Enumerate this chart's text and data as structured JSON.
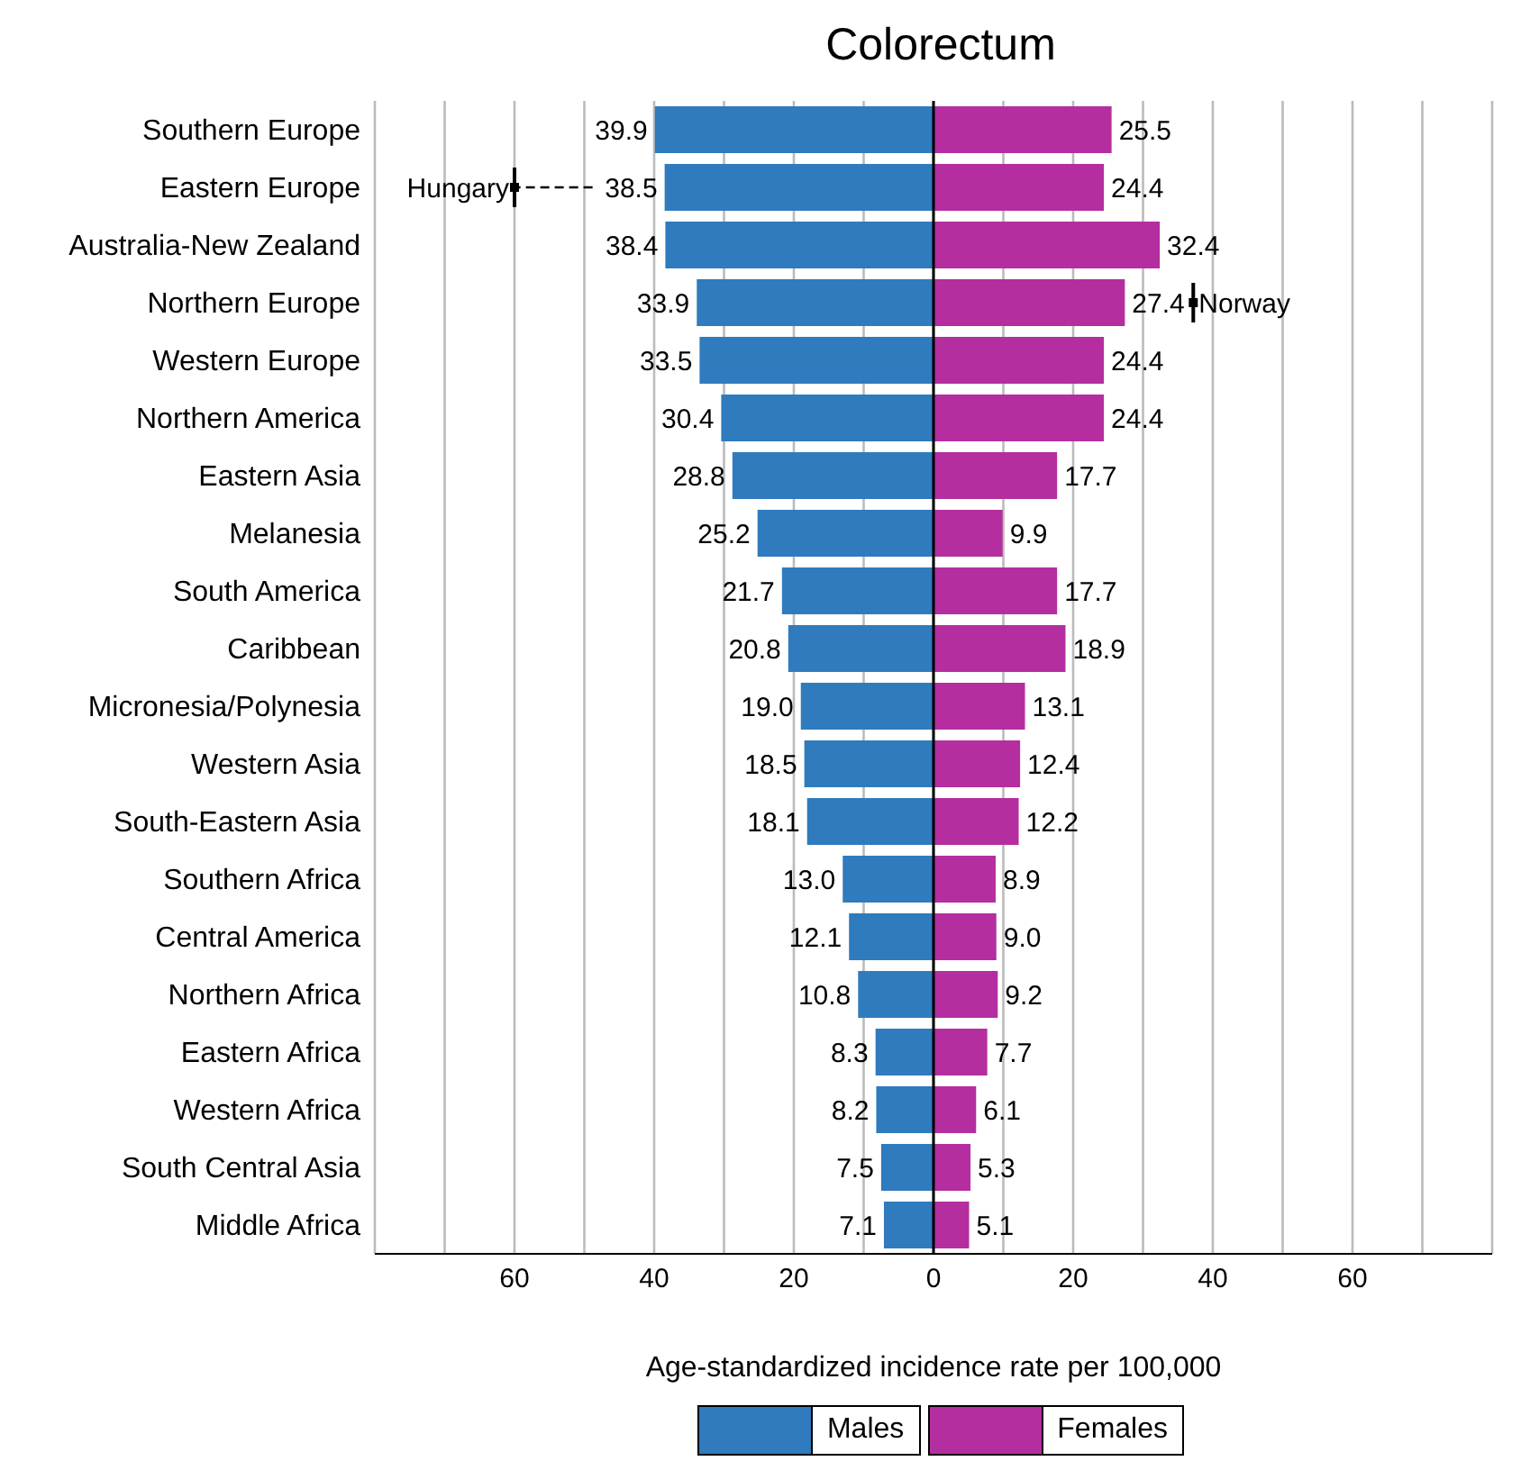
{
  "chart_data": {
    "type": "bar",
    "orientation": "horizontal",
    "title": "Colorectum",
    "xlabel": "Age-standardized incidence rate per 100,000",
    "categories": [
      "Southern Europe",
      "Eastern Europe",
      "Australia-New Zealand",
      "Northern Europe",
      "Western Europe",
      "Northern America",
      "Eastern Asia",
      "Melanesia",
      "South America",
      "Caribbean",
      "Micronesia/Polynesia",
      "Western Asia",
      "South-Eastern Asia",
      "Southern Africa",
      "Central America",
      "Northern Africa",
      "Eastern Africa",
      "Western Africa",
      "South Central Asia",
      "Middle Africa"
    ],
    "series": [
      {
        "name": "Males",
        "color": "#2f7bbd",
        "base": [
          -39.9,
          -38.5,
          -38.4,
          -33.9,
          -33.5,
          -30.4,
          -28.8,
          -25.2,
          -21.7,
          -20.8,
          -19.0,
          -18.5,
          -18.1,
          -13.0,
          -12.1,
          -10.8,
          -8.3,
          -8.2,
          -7.5,
          -7.1
        ],
        "values": [
          39.9,
          38.5,
          38.4,
          33.9,
          33.5,
          30.4,
          28.8,
          25.2,
          21.7,
          20.8,
          19.0,
          18.5,
          18.1,
          13.0,
          12.1,
          10.8,
          8.3,
          8.2,
          7.5,
          7.1
        ],
        "value_labels": [
          "39.9",
          "38.5",
          "38.4",
          "33.9",
          "33.5",
          "30.4",
          "28.8",
          "25.2",
          "21.7",
          "20.8",
          "19.0",
          "18.5",
          "18.1",
          "13.0",
          "12.1",
          "10.8",
          "8.3",
          "8.2",
          "7.5",
          "7.1"
        ]
      },
      {
        "name": "Females",
        "color": "#b42ea0",
        "values": [
          25.5,
          24.4,
          32.4,
          27.4,
          24.4,
          24.4,
          17.7,
          9.9,
          17.7,
          18.9,
          13.1,
          12.4,
          12.2,
          8.9,
          9.0,
          9.2,
          7.7,
          6.1,
          5.3,
          5.1
        ],
        "value_labels": [
          "25.5",
          "24.4",
          "32.4",
          "27.4",
          "24.4",
          "24.4",
          "17.7",
          "9.9",
          "17.7",
          "18.9",
          "13.1",
          "12.4",
          "12.2",
          "8.9",
          "9.0",
          "9.2",
          "7.7",
          "6.1",
          "5.3",
          "5.1"
        ]
      },
      {
        "type": "scatter",
        "name": "Hungary",
        "color": "#000000",
        "x": [
          "Eastern Europe"
        ],
        "values": [
          -60
        ]
      },
      {
        "type": "scatter",
        "name": "Norway",
        "color": "#000000",
        "x": [
          "Northern Europe"
        ],
        "values": [
          37.2
        ]
      }
    ],
    "xlim": [
      -80,
      80
    ],
    "xticks": [
      {
        "value": -70,
        "label": null
      },
      {
        "value": -60,
        "label": "60"
      },
      {
        "value": -50,
        "label": null
      },
      {
        "value": -40,
        "label": "40"
      },
      {
        "value": -30,
        "label": null
      },
      {
        "value": -20,
        "label": "20"
      },
      {
        "value": -10,
        "label": null
      },
      0,
      {
        "value": 10,
        "label": null
      },
      {
        "value": 20,
        "label": "20"
      },
      {
        "value": 30,
        "label": null
      },
      {
        "value": 40,
        "label": "40"
      },
      {
        "value": 50,
        "label": null
      },
      {
        "value": 60,
        "label": "60"
      },
      {
        "value": 70,
        "label": null
      }
    ],
    "grid": "x",
    "legend": "bottom",
    "ref_lines": [
      {
        "axis": "x",
        "value": 0,
        "color": "#000000"
      }
    ]
  }
}
